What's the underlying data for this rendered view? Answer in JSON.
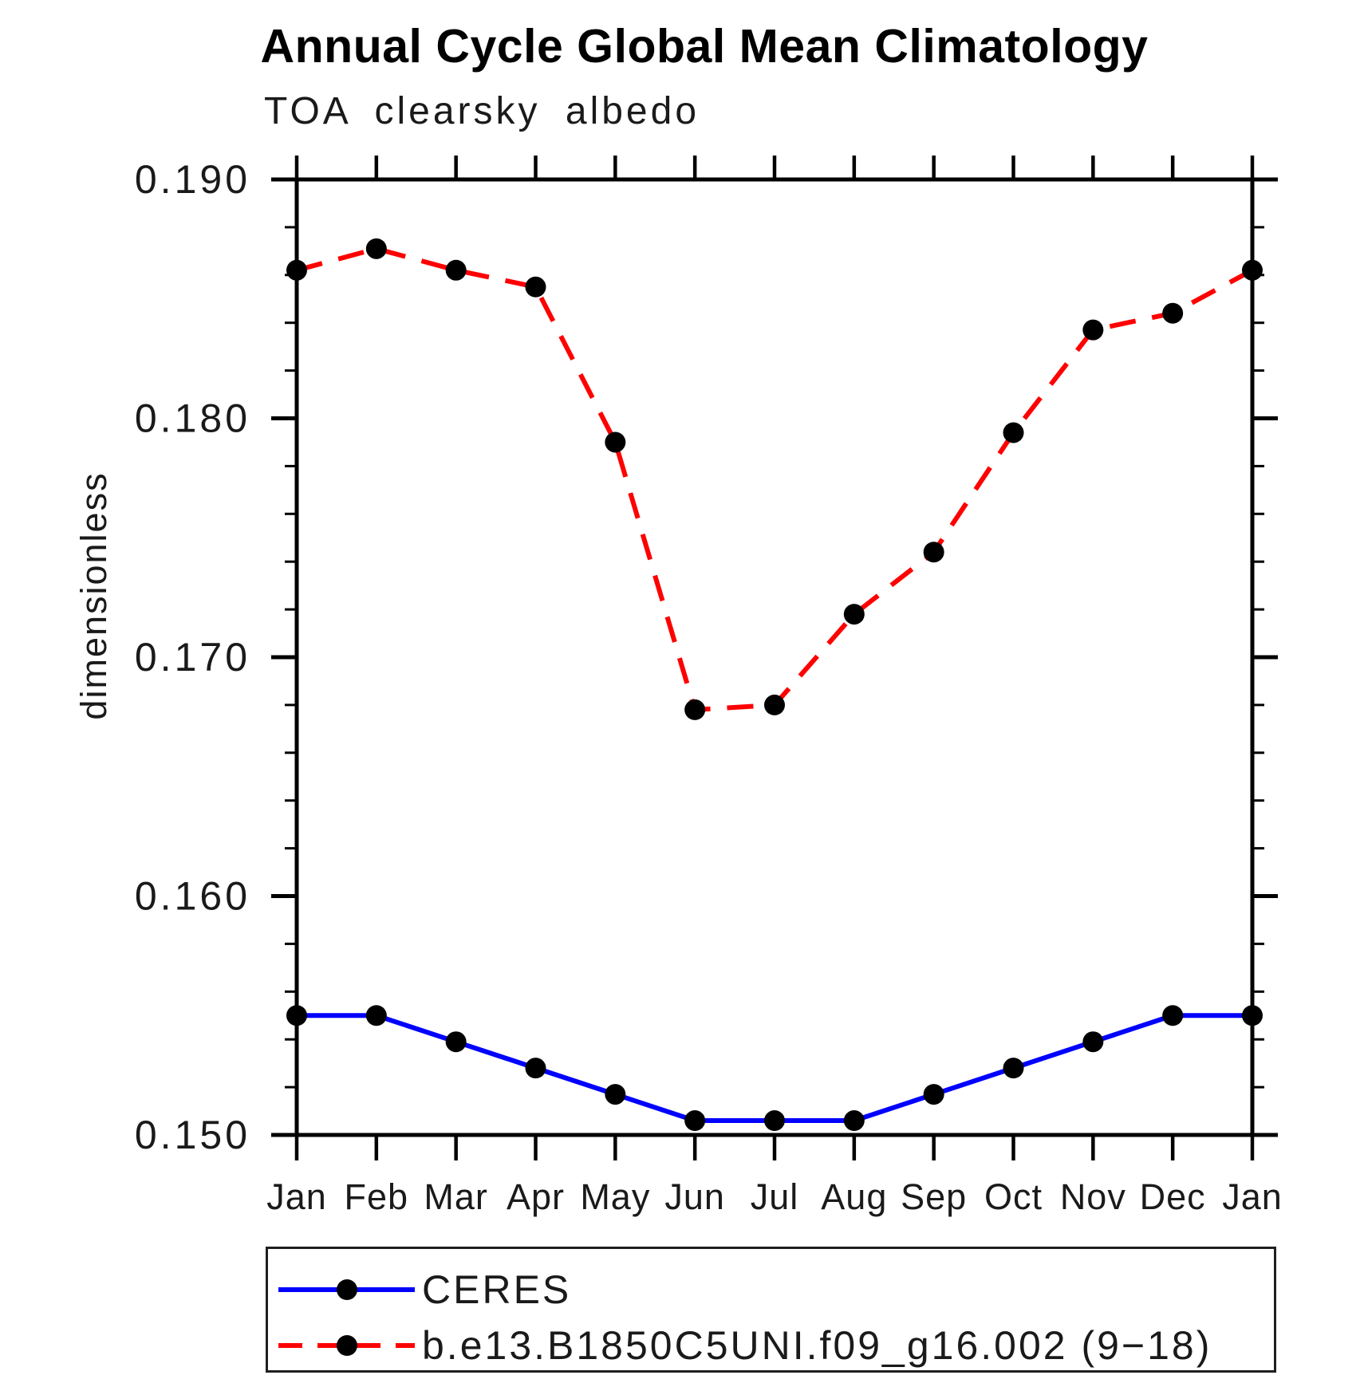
{
  "page": {
    "title": "Annual Cycle Global Mean Climatology",
    "subtitle": "TOA clearsky albedo",
    "ylabel": "dimensionless"
  },
  "legend": {
    "entries": [
      {
        "label": "CERES"
      },
      {
        "label": "b.e13.B1850C5UNI.f09_g16.002 (9−18)"
      }
    ]
  },
  "chart_data": {
    "type": "line",
    "title": "Annual Cycle Global Mean Climatology",
    "subtitle": "TOA clearsky albedo",
    "xlabel": "",
    "ylabel": "dimensionless",
    "ylim": [
      0.15,
      0.19
    ],
    "ytick_values": [
      0.19,
      0.18,
      0.17,
      0.16,
      0.15
    ],
    "ytick_labels": [
      "0.190",
      "0.180",
      "0.170",
      "0.160",
      "0.150"
    ],
    "yminor_interval": 0.002,
    "grid": false,
    "legend_position": "bottom",
    "categories": [
      "Jan",
      "Feb",
      "Mar",
      "Apr",
      "May",
      "Jun",
      "Jul",
      "Aug",
      "Sep",
      "Oct",
      "Nov",
      "Dec",
      "Jan"
    ],
    "series": [
      {
        "name": "CERES",
        "color": "#0000ff",
        "style": "solid",
        "marker": "filled-circle",
        "marker_color": "#000000",
        "values": [
          0.155,
          0.155,
          0.1539,
          0.1528,
          0.1517,
          0.1506,
          0.1506,
          0.1506,
          0.1517,
          0.1528,
          0.1539,
          0.155,
          0.155
        ]
      },
      {
        "name": "b.e13.B1850C5UNI.f09_g16.002 (9−18)",
        "color": "#ff0000",
        "style": "dashed",
        "marker": "filled-circle",
        "marker_color": "#000000",
        "values": [
          0.1862,
          0.1871,
          0.1862,
          0.1855,
          0.179,
          0.1678,
          0.168,
          0.1718,
          0.1744,
          0.1794,
          0.1837,
          0.1844,
          0.1862
        ]
      }
    ]
  }
}
